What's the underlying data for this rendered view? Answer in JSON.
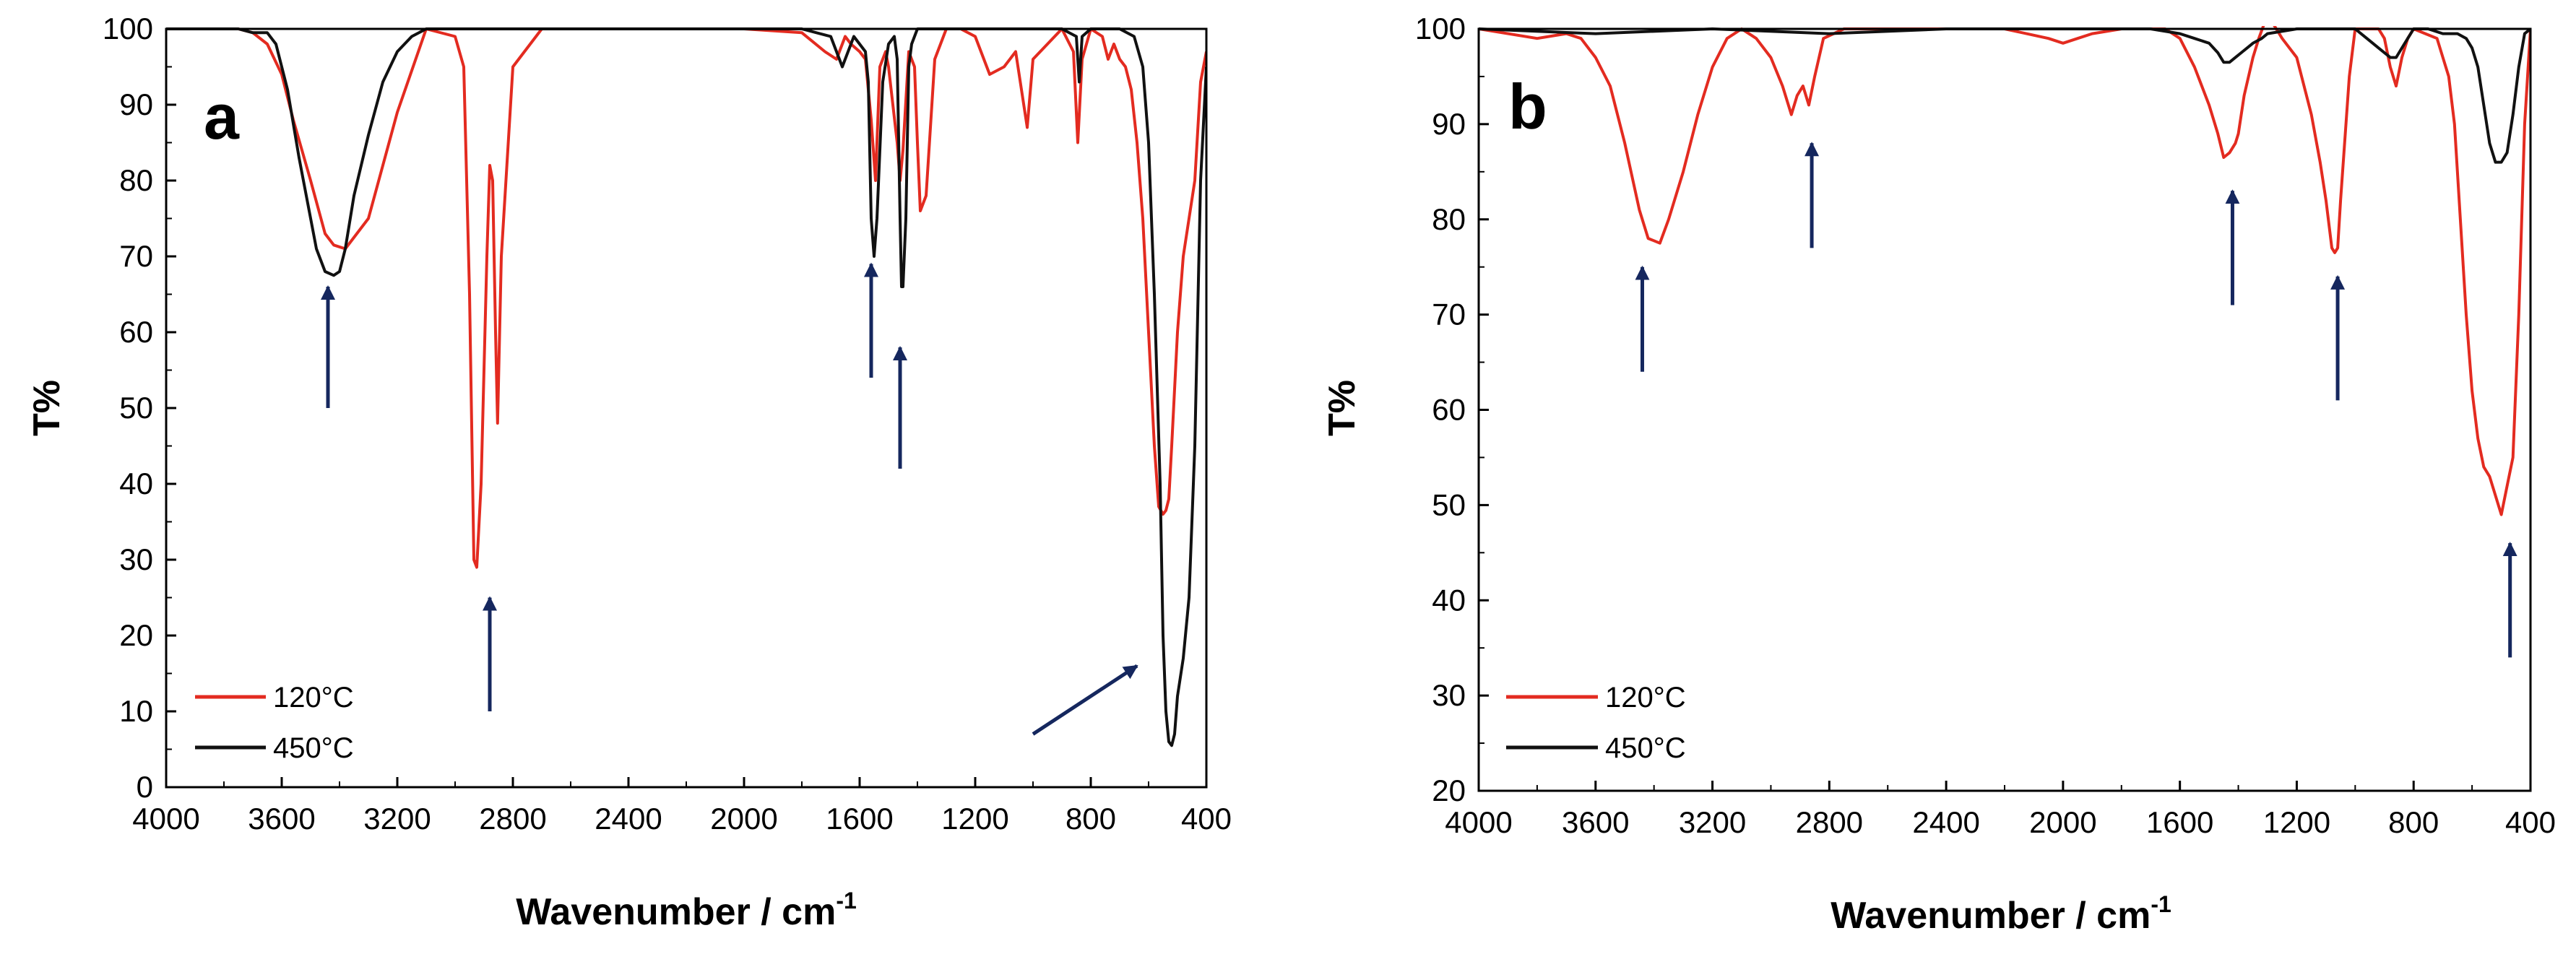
{
  "colors": {
    "s120": "#e32b20",
    "s450": "#111111",
    "arrow": "#15275e",
    "axis": "#000000"
  },
  "chart_data": [
    {
      "type": "line",
      "panel": "a",
      "xlabel": "Wavenumber / cm",
      "xlabel_sup": "-1",
      "ylabel": "T%",
      "xlim": [
        4000,
        400
      ],
      "ylim": [
        0,
        100
      ],
      "xticks": [
        4000,
        3600,
        3200,
        2800,
        2400,
        2000,
        1600,
        1200,
        800,
        400
      ],
      "yticks": [
        0,
        10,
        20,
        30,
        40,
        50,
        60,
        70,
        80,
        90,
        100
      ],
      "legend": {
        "position": "bottom-left",
        "entries": [
          "120°C",
          "450°C"
        ]
      },
      "series": [
        {
          "name": "120°C",
          "color": "#e32b20",
          "x": [
            4000,
            3750,
            3700,
            3650,
            3600,
            3560,
            3500,
            3450,
            3420,
            3380,
            3300,
            3200,
            3100,
            3000,
            2970,
            2950,
            2935,
            2925,
            2910,
            2890,
            2880,
            2870,
            2860,
            2853,
            2840,
            2800,
            2700,
            2600,
            2400,
            2200,
            2000,
            1800,
            1720,
            1680,
            1650,
            1630,
            1600,
            1580,
            1560,
            1545,
            1530,
            1510,
            1500,
            1470,
            1460,
            1450,
            1430,
            1410,
            1400,
            1390,
            1370,
            1340,
            1300,
            1250,
            1200,
            1150,
            1100,
            1060,
            1040,
            1020,
            1000,
            950,
            900,
            860,
            845,
            830,
            800,
            760,
            740,
            720,
            700,
            680,
            660,
            640,
            620,
            600,
            580,
            565,
            550,
            540,
            530,
            520,
            500,
            480,
            460,
            440,
            420,
            400
          ],
          "y": [
            100,
            100,
            99.5,
            98,
            94,
            88,
            80,
            73,
            71.5,
            71,
            75,
            89,
            100,
            99,
            95,
            65,
            30,
            29,
            40,
            70,
            82,
            80,
            60,
            48,
            70,
            95,
            100,
            100,
            100,
            100,
            100,
            99.5,
            97,
            96,
            99,
            98,
            97,
            96,
            88,
            80,
            95,
            97,
            95,
            85,
            80,
            84,
            97,
            95,
            85,
            76,
            78,
            96,
            100,
            100,
            99,
            94,
            95,
            97,
            92,
            87,
            96,
            98,
            100,
            97,
            85,
            96,
            100,
            99,
            96,
            98,
            96,
            95,
            92,
            85,
            75,
            60,
            45,
            37,
            36,
            36.5,
            38,
            45,
            60,
            70,
            75,
            80,
            93,
            97
          ]
        },
        {
          "name": "450°C",
          "color": "#111111",
          "x": [
            4000,
            3750,
            3700,
            3650,
            3620,
            3580,
            3540,
            3500,
            3480,
            3450,
            3420,
            3400,
            3380,
            3350,
            3300,
            3250,
            3200,
            3150,
            3100,
            3050,
            3000,
            2800,
            2400,
            2000,
            1800,
            1700,
            1660,
            1640,
            1620,
            1600,
            1580,
            1570,
            1560,
            1550,
            1540,
            1520,
            1500,
            1480,
            1470,
            1460,
            1455,
            1450,
            1440,
            1430,
            1420,
            1400,
            1300,
            1200,
            1100,
            1000,
            900,
            850,
            840,
            830,
            800,
            700,
            650,
            620,
            600,
            580,
            560,
            550,
            540,
            530,
            520,
            510,
            500,
            480,
            460,
            440,
            420,
            400
          ],
          "y": [
            100,
            100,
            99.5,
            99.5,
            98,
            92,
            83,
            75,
            71,
            68,
            67.5,
            68,
            71,
            78,
            86,
            93,
            97,
            99,
            100,
            100,
            100,
            100,
            100,
            100,
            100,
            99,
            95,
            97,
            99,
            98,
            97,
            93,
            75,
            70,
            75,
            93,
            98,
            99,
            96,
            75,
            66,
            66,
            75,
            95,
            98,
            100,
            100,
            100,
            100,
            100,
            100,
            99,
            93,
            99,
            100,
            100,
            99,
            95,
            85,
            65,
            40,
            20,
            10,
            6,
            5.5,
            7,
            12,
            17,
            25,
            45,
            80,
            95
          ]
        }
      ],
      "arrows": [
        {
          "x": 3440,
          "y_tail": 50,
          "y_head": 66
        },
        {
          "x": 2880,
          "y_tail": 10,
          "y_head": 25
        },
        {
          "x": 1560,
          "y_tail": 54,
          "y_head": 69
        },
        {
          "x": 1460,
          "y_tail": 42,
          "y_head": 58
        },
        {
          "x": 1000,
          "y_tail": 7,
          "x_head": 640,
          "y_head": 16
        }
      ]
    },
    {
      "type": "line",
      "panel": "b",
      "xlabel": "Wavenumber / cm",
      "xlabel_sup": "-1",
      "ylabel": "T%",
      "xlim": [
        4000,
        400
      ],
      "ylim": [
        20,
        100
      ],
      "xticks": [
        4000,
        3600,
        3200,
        2800,
        2400,
        2000,
        1600,
        1200,
        800,
        400
      ],
      "yticks": [
        20,
        30,
        40,
        50,
        60,
        70,
        80,
        90,
        100
      ],
      "legend": {
        "position": "bottom-left",
        "entries": [
          "120°C",
          "450°C"
        ]
      },
      "series": [
        {
          "name": "120°C",
          "color": "#e32b20",
          "x": [
            4000,
            3800,
            3700,
            3650,
            3600,
            3550,
            3500,
            3450,
            3420,
            3380,
            3350,
            3300,
            3250,
            3200,
            3150,
            3100,
            3050,
            3000,
            2960,
            2930,
            2910,
            2890,
            2870,
            2850,
            2820,
            2750,
            2600,
            2400,
            2200,
            2050,
            2000,
            1950,
            1900,
            1800,
            1700,
            1650,
            1600,
            1550,
            1500,
            1470,
            1450,
            1430,
            1410,
            1400,
            1380,
            1350,
            1330,
            1300,
            1270,
            1250,
            1200,
            1150,
            1120,
            1100,
            1080,
            1070,
            1060,
            1050,
            1020,
            1000,
            960,
            940,
            920,
            900,
            880,
            860,
            840,
            820,
            800,
            760,
            720,
            700,
            680,
            660,
            640,
            620,
            600,
            580,
            560,
            540,
            520,
            500,
            480,
            460,
            440,
            420,
            400
          ],
          "y": [
            100,
            99,
            99.5,
            99,
            97,
            94,
            88,
            81,
            78,
            77.5,
            80,
            85,
            91,
            96,
            99,
            100,
            99,
            97,
            94,
            91,
            93,
            94,
            92,
            95,
            99,
            100,
            100,
            100,
            100,
            99,
            98.5,
            99,
            99.5,
            100,
            100,
            100,
            99,
            96,
            92,
            89,
            86.5,
            87,
            88,
            89,
            93,
            97,
            99,
            101.5,
            100,
            99,
            97,
            91,
            86,
            82,
            77,
            76.5,
            77,
            82,
            95,
            100,
            100,
            100,
            100,
            99,
            96,
            94,
            97,
            99,
            100,
            99.5,
            99,
            97,
            95,
            90,
            80,
            70,
            62,
            57,
            54,
            53,
            51,
            49,
            52,
            55,
            70,
            90,
            100
          ]
        },
        {
          "name": "450°C",
          "color": "#111111",
          "x": [
            4000,
            3600,
            3200,
            2800,
            2400,
            2000,
            1800,
            1700,
            1600,
            1550,
            1500,
            1470,
            1450,
            1430,
            1410,
            1390,
            1370,
            1350,
            1320,
            1300,
            1200,
            1100,
            1000,
            960,
            920,
            880,
            860,
            840,
            820,
            800,
            750,
            700,
            650,
            620,
            600,
            580,
            560,
            540,
            520,
            500,
            480,
            460,
            440,
            420,
            400
          ],
          "y": [
            100,
            99.5,
            100,
            99.5,
            100,
            100,
            100,
            100,
            99.5,
            99,
            98.5,
            97.5,
            96.5,
            96.5,
            97,
            97.5,
            98,
            98.5,
            99,
            99.5,
            100,
            100,
            100,
            99,
            98,
            97,
            97,
            98,
            99,
            100,
            100,
            99.5,
            99.5,
            99,
            98,
            96,
            92,
            88,
            86,
            86,
            87,
            91,
            96,
            99.5,
            100
          ]
        }
      ],
      "arrows": [
        {
          "x": 3440,
          "y_tail": 64,
          "y_head": 75
        },
        {
          "x": 2860,
          "y_tail": 77,
          "y_head": 88
        },
        {
          "x": 1420,
          "y_tail": 71,
          "y_head": 83
        },
        {
          "x": 1060,
          "y_tail": 61,
          "y_head": 74
        },
        {
          "x": 470,
          "y_tail": 34,
          "y_head": 46
        }
      ]
    }
  ]
}
